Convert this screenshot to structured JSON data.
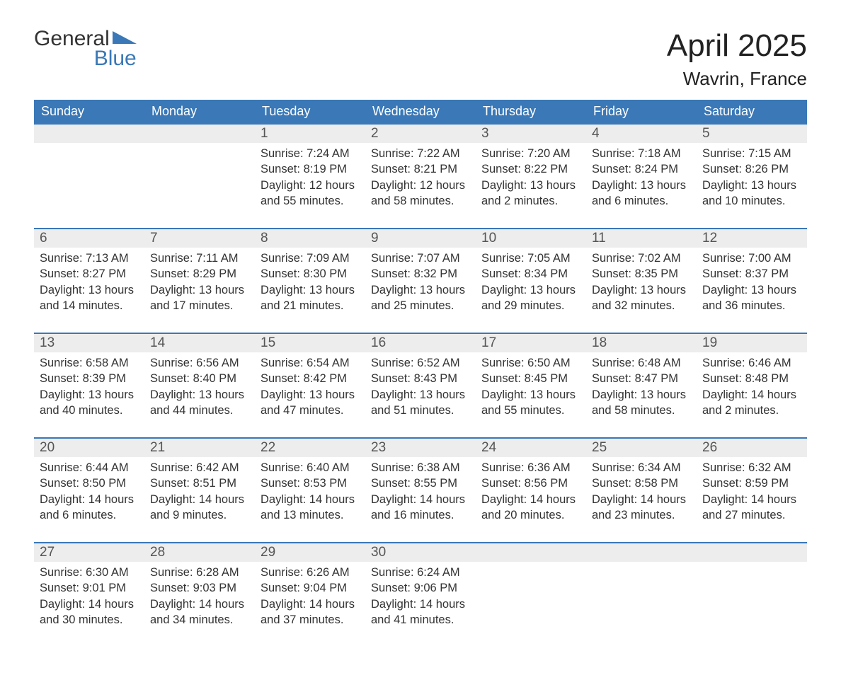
{
  "logo": {
    "word1": "General",
    "word2": "Blue"
  },
  "title": "April 2025",
  "subtitle": "Wavrin, France",
  "colors": {
    "header_bg": "#3a78b7",
    "header_text": "#ffffff",
    "daybar_bg": "#ededed",
    "daybar_border": "#3a78b7",
    "body_text": "#333333",
    "logo_blue": "#3a78b7"
  },
  "fontsize": {
    "title": 44,
    "subtitle": 26,
    "weekday_header": 18,
    "day_number": 19,
    "day_body": 16.5
  },
  "weekdays": [
    "Sunday",
    "Monday",
    "Tuesday",
    "Wednesday",
    "Thursday",
    "Friday",
    "Saturday"
  ],
  "labels": {
    "sunrise": "Sunrise:",
    "sunset": "Sunset:",
    "daylight": "Daylight:"
  },
  "weeks": [
    [
      null,
      null,
      {
        "day": "1",
        "sunrise": "7:24 AM",
        "sunset": "8:19 PM",
        "daylight": "12 hours and 55 minutes."
      },
      {
        "day": "2",
        "sunrise": "7:22 AM",
        "sunset": "8:21 PM",
        "daylight": "12 hours and 58 minutes."
      },
      {
        "day": "3",
        "sunrise": "7:20 AM",
        "sunset": "8:22 PM",
        "daylight": "13 hours and 2 minutes."
      },
      {
        "day": "4",
        "sunrise": "7:18 AM",
        "sunset": "8:24 PM",
        "daylight": "13 hours and 6 minutes."
      },
      {
        "day": "5",
        "sunrise": "7:15 AM",
        "sunset": "8:26 PM",
        "daylight": "13 hours and 10 minutes."
      }
    ],
    [
      {
        "day": "6",
        "sunrise": "7:13 AM",
        "sunset": "8:27 PM",
        "daylight": "13 hours and 14 minutes."
      },
      {
        "day": "7",
        "sunrise": "7:11 AM",
        "sunset": "8:29 PM",
        "daylight": "13 hours and 17 minutes."
      },
      {
        "day": "8",
        "sunrise": "7:09 AM",
        "sunset": "8:30 PM",
        "daylight": "13 hours and 21 minutes."
      },
      {
        "day": "9",
        "sunrise": "7:07 AM",
        "sunset": "8:32 PM",
        "daylight": "13 hours and 25 minutes."
      },
      {
        "day": "10",
        "sunrise": "7:05 AM",
        "sunset": "8:34 PM",
        "daylight": "13 hours and 29 minutes."
      },
      {
        "day": "11",
        "sunrise": "7:02 AM",
        "sunset": "8:35 PM",
        "daylight": "13 hours and 32 minutes."
      },
      {
        "day": "12",
        "sunrise": "7:00 AM",
        "sunset": "8:37 PM",
        "daylight": "13 hours and 36 minutes."
      }
    ],
    [
      {
        "day": "13",
        "sunrise": "6:58 AM",
        "sunset": "8:39 PM",
        "daylight": "13 hours and 40 minutes."
      },
      {
        "day": "14",
        "sunrise": "6:56 AM",
        "sunset": "8:40 PM",
        "daylight": "13 hours and 44 minutes."
      },
      {
        "day": "15",
        "sunrise": "6:54 AM",
        "sunset": "8:42 PM",
        "daylight": "13 hours and 47 minutes."
      },
      {
        "day": "16",
        "sunrise": "6:52 AM",
        "sunset": "8:43 PM",
        "daylight": "13 hours and 51 minutes."
      },
      {
        "day": "17",
        "sunrise": "6:50 AM",
        "sunset": "8:45 PM",
        "daylight": "13 hours and 55 minutes."
      },
      {
        "day": "18",
        "sunrise": "6:48 AM",
        "sunset": "8:47 PM",
        "daylight": "13 hours and 58 minutes."
      },
      {
        "day": "19",
        "sunrise": "6:46 AM",
        "sunset": "8:48 PM",
        "daylight": "14 hours and 2 minutes."
      }
    ],
    [
      {
        "day": "20",
        "sunrise": "6:44 AM",
        "sunset": "8:50 PM",
        "daylight": "14 hours and 6 minutes."
      },
      {
        "day": "21",
        "sunrise": "6:42 AM",
        "sunset": "8:51 PM",
        "daylight": "14 hours and 9 minutes."
      },
      {
        "day": "22",
        "sunrise": "6:40 AM",
        "sunset": "8:53 PM",
        "daylight": "14 hours and 13 minutes."
      },
      {
        "day": "23",
        "sunrise": "6:38 AM",
        "sunset": "8:55 PM",
        "daylight": "14 hours and 16 minutes."
      },
      {
        "day": "24",
        "sunrise": "6:36 AM",
        "sunset": "8:56 PM",
        "daylight": "14 hours and 20 minutes."
      },
      {
        "day": "25",
        "sunrise": "6:34 AM",
        "sunset": "8:58 PM",
        "daylight": "14 hours and 23 minutes."
      },
      {
        "day": "26",
        "sunrise": "6:32 AM",
        "sunset": "8:59 PM",
        "daylight": "14 hours and 27 minutes."
      }
    ],
    [
      {
        "day": "27",
        "sunrise": "6:30 AM",
        "sunset": "9:01 PM",
        "daylight": "14 hours and 30 minutes."
      },
      {
        "day": "28",
        "sunrise": "6:28 AM",
        "sunset": "9:03 PM",
        "daylight": "14 hours and 34 minutes."
      },
      {
        "day": "29",
        "sunrise": "6:26 AM",
        "sunset": "9:04 PM",
        "daylight": "14 hours and 37 minutes."
      },
      {
        "day": "30",
        "sunrise": "6:24 AM",
        "sunset": "9:06 PM",
        "daylight": "14 hours and 41 minutes."
      },
      null,
      null,
      null
    ]
  ]
}
